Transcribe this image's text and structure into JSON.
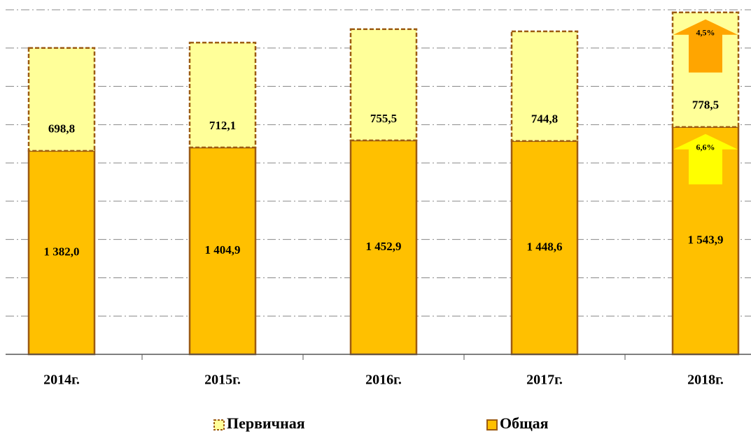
{
  "chart_data": {
    "type": "stacked_bar",
    "categories": [
      "2014г.",
      "2015г.",
      "2016г.",
      "2017г.",
      "2018г."
    ],
    "series": [
      {
        "name": "Общая",
        "color": "#ffc000",
        "values": [
          1382.0,
          1404.9,
          1452.9,
          1448.6,
          1543.9
        ],
        "value_labels": [
          "1 382,0",
          "1 404,9",
          "1 452,9",
          "1 448,6",
          "1 543,9"
        ]
      },
      {
        "name": "Первичная",
        "color": "#ffff99",
        "values": [
          698.8,
          712.1,
          755.5,
          744.8,
          778.5
        ],
        "value_labels": [
          "698,8",
          "712,1",
          "755,5",
          "744,8",
          "778,5"
        ]
      }
    ],
    "ylim": [
      0,
      2340
    ],
    "yticks": [
      0,
      260,
      520,
      780,
      1040,
      1300,
      1560,
      1820,
      2080,
      2340
    ],
    "grid": true,
    "legend": "bottom",
    "annotations": [
      {
        "text": "6,6%",
        "color": "#ffff00"
      },
      {
        "text": "4,5%",
        "color": "#ffa500"
      }
    ]
  }
}
